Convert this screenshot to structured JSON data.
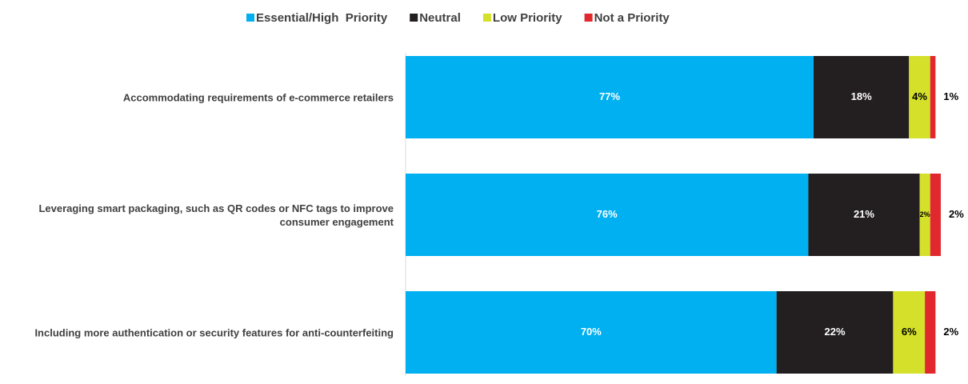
{
  "chart_data": {
    "type": "stacked_barh",
    "categories": [
      "Accommodating requirements of e-commerce retailers",
      "Leveraging smart packaging, such as QR codes or NFC tags to improve consumer engagement",
      "Including more authentication or security features for anti-counterfeiting"
    ],
    "series": [
      {
        "name": "Essential/High  Priority",
        "color": "#00b0f0",
        "values": [
          77,
          76,
          70
        ],
        "value_labels": [
          "77%",
          "76%",
          "70%"
        ]
      },
      {
        "name": "Neutral",
        "color": "#231f20",
        "values": [
          18,
          21,
          22
        ],
        "value_labels": [
          "18%",
          "21%",
          "22%"
        ]
      },
      {
        "name": "Low Priority",
        "color": "#d4e02a",
        "values": [
          4,
          2,
          6
        ],
        "value_labels": [
          "4%",
          "2%",
          "6%"
        ]
      },
      {
        "name": "Not a Priority",
        "color": "#e0282e",
        "values": [
          1,
          2,
          2
        ],
        "value_labels": [
          "1%",
          "2%",
          "2%"
        ]
      }
    ],
    "legend": "top"
  }
}
